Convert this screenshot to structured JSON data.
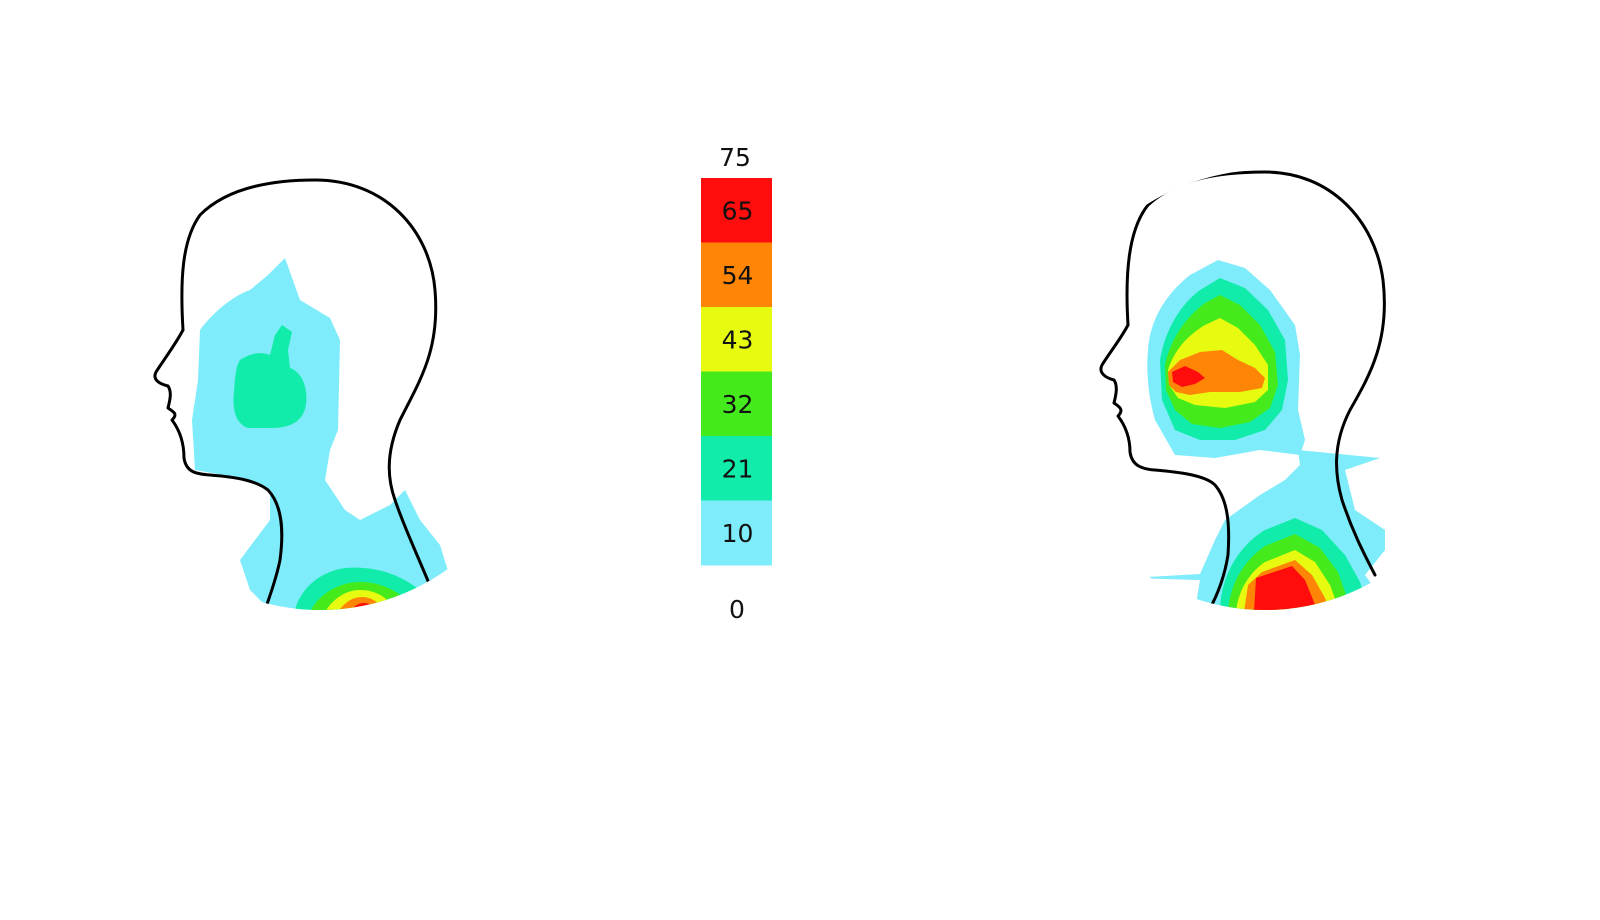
{
  "colors": {
    "background": "#ffffff",
    "outline": "#000000",
    "bin_10": "#7eecfa",
    "bin_21": "#12ecab",
    "bin_32": "#44ea1c",
    "bin_43": "#e6fb10",
    "bin_54": "#ff8506",
    "bin_65": "#ff0d0c"
  },
  "scale": {
    "max_label": "75",
    "min_label": "0",
    "bins": [
      {
        "label": "65",
        "color": "#ff0d0c"
      },
      {
        "label": "54",
        "color": "#ff8506"
      },
      {
        "label": "43",
        "color": "#e6fb10"
      },
      {
        "label": "32",
        "color": "#44ea1c"
      },
      {
        "label": "21",
        "color": "#12ecab"
      },
      {
        "label": "10",
        "color": "#7eecfa"
      }
    ]
  },
  "panels": [
    {
      "orientation": "left-facing",
      "hotspots": [
        "temple: 21",
        "lower neck: 65"
      ]
    },
    {
      "orientation": "left-facing",
      "hotspots": [
        "upper head: 65",
        "lower neck: 65"
      ]
    }
  ]
}
